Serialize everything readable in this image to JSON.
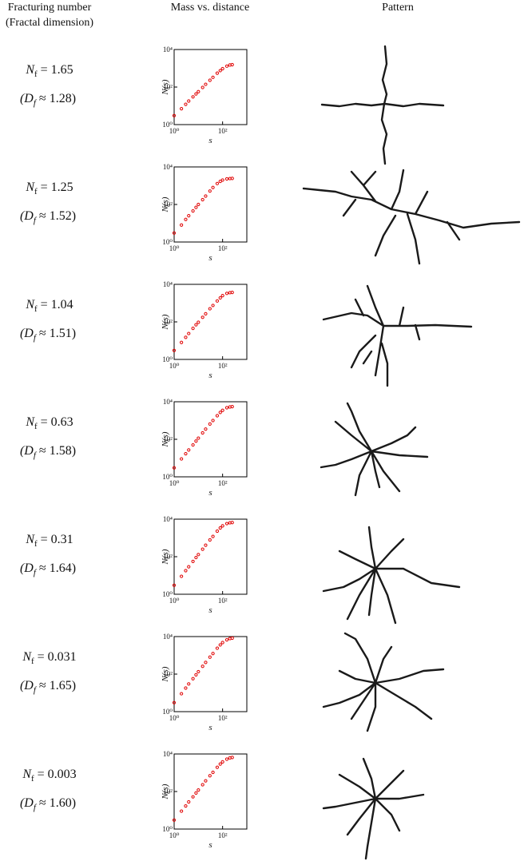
{
  "headers": [
    "Fracturing number",
    "(Fractal dimension)",
    "Mass vs. distance",
    "Pattern"
  ],
  "rows": [
    {
      "n_symbol": "N",
      "n_sub": "f",
      "n_value": " = 1.65",
      "d_open": "(D",
      "d_sub": "f",
      "d_value": " ≈ 1.28)"
    },
    {
      "n_symbol": "N",
      "n_sub": "f",
      "n_value": " = 1.25",
      "d_open": "(D",
      "d_sub": "f",
      "d_value": " ≈ 1.52)"
    },
    {
      "n_symbol": "N",
      "n_sub": "f",
      "n_value": " = 1.04",
      "d_open": "(D",
      "d_sub": "f",
      "d_value": " ≈ 1.51)"
    },
    {
      "n_symbol": "N",
      "n_sub": "f",
      "n_value": " = 0.63",
      "d_open": "(D",
      "d_sub": "f",
      "d_value": " ≈ 1.58)"
    },
    {
      "n_symbol": "N",
      "n_sub": "f",
      "n_value": " = 0.31",
      "d_open": "(D",
      "d_sub": "f",
      "d_value": " ≈ 1.64)"
    },
    {
      "n_symbol": "N",
      "n_sub": "f",
      "n_value": " = 0.031",
      "d_open": "(D",
      "d_sub": "f",
      "d_value": " ≈ 1.65)"
    },
    {
      "n_symbol": "N",
      "n_sub": "f",
      "n_value": " = 0.003",
      "d_open": "(D",
      "d_sub": "f",
      "d_value": " ≈ 1.60)"
    }
  ],
  "chart_data": [
    {
      "type": "scatter",
      "xlabel": "s",
      "ylabel": "N(s)",
      "log_x": true,
      "log_y": true,
      "color": "#e00000",
      "x": [
        1,
        2,
        3,
        4,
        6,
        8,
        10,
        15,
        20,
        30,
        40,
        60,
        80,
        100,
        150,
        200,
        250
      ],
      "values": [
        3,
        7,
        12,
        18,
        30,
        43,
        57,
        95,
        140,
        230,
        330,
        550,
        750,
        950,
        1300,
        1500,
        1550
      ],
      "xlim": [
        1,
        1000
      ],
      "ylim": [
        1,
        10000
      ],
      "xticks": [
        {
          "value": 1,
          "label": "10⁰"
        },
        {
          "value": 100,
          "label": "10²"
        }
      ],
      "yticks": [
        {
          "value": 1,
          "label": "10⁰"
        },
        {
          "value": 100,
          "label": "10²"
        },
        {
          "value": 10000,
          "label": "10⁴"
        }
      ]
    },
    {
      "type": "scatter",
      "xlabel": "s",
      "ylabel": "N(s)",
      "log_x": true,
      "log_y": true,
      "color": "#e00000",
      "x": [
        1,
        2,
        3,
        4,
        6,
        8,
        10,
        15,
        20,
        30,
        40,
        60,
        80,
        100,
        150,
        200,
        250
      ],
      "values": [
        3,
        8,
        16,
        25,
        45,
        70,
        100,
        180,
        280,
        520,
        800,
        1300,
        1700,
        2000,
        2300,
        2400,
        2450
      ],
      "xlim": [
        1,
        1000
      ],
      "ylim": [
        1,
        10000
      ],
      "xticks": [
        {
          "value": 1,
          "label": "10⁰"
        },
        {
          "value": 100,
          "label": "10²"
        }
      ],
      "yticks": [
        {
          "value": 1,
          "label": "10⁰"
        },
        {
          "value": 100,
          "label": "10²"
        },
        {
          "value": 10000,
          "label": "10⁴"
        }
      ]
    },
    {
      "type": "scatter",
      "xlabel": "s",
      "ylabel": "N(s)",
      "log_x": true,
      "log_y": true,
      "color": "#e00000",
      "x": [
        1,
        2,
        3,
        4,
        6,
        8,
        10,
        15,
        20,
        30,
        40,
        60,
        80,
        100,
        150,
        200,
        250
      ],
      "values": [
        3,
        8,
        15,
        24,
        45,
        70,
        95,
        175,
        270,
        500,
        750,
        1300,
        1900,
        2500,
        3300,
        3600,
        3700
      ],
      "xlim": [
        1,
        1000
      ],
      "ylim": [
        1,
        10000
      ],
      "xticks": [
        {
          "value": 1,
          "label": "10⁰"
        },
        {
          "value": 100,
          "label": "10²"
        }
      ],
      "yticks": [
        {
          "value": 1,
          "label": "10⁰"
        },
        {
          "value": 100,
          "label": "10²"
        },
        {
          "value": 10000,
          "label": "10⁴"
        }
      ]
    },
    {
      "type": "scatter",
      "xlabel": "s",
      "ylabel": "N(s)",
      "log_x": true,
      "log_y": true,
      "color": "#e00000",
      "x": [
        1,
        2,
        3,
        4,
        6,
        8,
        10,
        15,
        20,
        30,
        40,
        60,
        80,
        100,
        150,
        200,
        250
      ],
      "values": [
        3,
        9,
        17,
        27,
        50,
        80,
        115,
        220,
        350,
        650,
        1000,
        1800,
        2700,
        3500,
        4800,
        5300,
        5500
      ],
      "xlim": [
        1,
        1000
      ],
      "ylim": [
        1,
        10000
      ],
      "xticks": [
        {
          "value": 1,
          "label": "10⁰"
        },
        {
          "value": 100,
          "label": "10²"
        }
      ],
      "yticks": [
        {
          "value": 1,
          "label": "10⁰"
        },
        {
          "value": 100,
          "label": "10²"
        },
        {
          "value": 10000,
          "label": "10⁴"
        }
      ]
    },
    {
      "type": "scatter",
      "xlabel": "s",
      "ylabel": "N(s)",
      "log_x": true,
      "log_y": true,
      "color": "#e00000",
      "x": [
        1,
        2,
        3,
        4,
        6,
        8,
        10,
        15,
        20,
        30,
        40,
        60,
        80,
        100,
        150,
        200,
        250
      ],
      "values": [
        3,
        9,
        18,
        29,
        56,
        90,
        130,
        250,
        410,
        780,
        1200,
        2300,
        3400,
        4400,
        5800,
        6400,
        6600
      ],
      "xlim": [
        1,
        1000
      ],
      "ylim": [
        1,
        10000
      ],
      "xticks": [
        {
          "value": 1,
          "label": "10⁰"
        },
        {
          "value": 100,
          "label": "10²"
        }
      ],
      "yticks": [
        {
          "value": 1,
          "label": "10⁰"
        },
        {
          "value": 100,
          "label": "10²"
        },
        {
          "value": 10000,
          "label": "10⁴"
        }
      ]
    },
    {
      "type": "scatter",
      "xlabel": "s",
      "ylabel": "N(s)",
      "log_x": true,
      "log_y": true,
      "color": "#e00000",
      "x": [
        1,
        2,
        3,
        4,
        6,
        8,
        10,
        15,
        20,
        30,
        40,
        60,
        80,
        100,
        150,
        200,
        250
      ],
      "values": [
        3,
        9,
        18,
        30,
        57,
        92,
        135,
        260,
        420,
        800,
        1250,
        2400,
        3600,
        4800,
        6700,
        7800,
        8200
      ],
      "xlim": [
        1,
        1000
      ],
      "ylim": [
        1,
        10000
      ],
      "xticks": [
        {
          "value": 1,
          "label": "10⁰"
        },
        {
          "value": 100,
          "label": "10²"
        }
      ],
      "yticks": [
        {
          "value": 1,
          "label": "10⁰"
        },
        {
          "value": 100,
          "label": "10²"
        },
        {
          "value": 10000,
          "label": "10⁴"
        }
      ]
    },
    {
      "type": "scatter",
      "xlabel": "s",
      "ylabel": "N(s)",
      "log_x": true,
      "log_y": true,
      "color": "#e00000",
      "x": [
        1,
        2,
        3,
        4,
        6,
        8,
        10,
        15,
        20,
        30,
        40,
        60,
        80,
        100,
        150,
        200,
        250
      ],
      "values": [
        3,
        9,
        17,
        28,
        52,
        83,
        120,
        230,
        370,
        690,
        1050,
        1950,
        2900,
        3800,
        5300,
        6200,
        6500
      ],
      "xlim": [
        1,
        1000
      ],
      "ylim": [
        1,
        10000
      ],
      "xticks": [
        {
          "value": 1,
          "label": "10⁰"
        },
        {
          "value": 100,
          "label": "10²"
        }
      ],
      "yticks": [
        {
          "value": 1,
          "label": "10⁰"
        },
        {
          "value": 100,
          "label": "10²"
        },
        {
          "value": 10000,
          "label": "10⁴"
        }
      ]
    }
  ]
}
